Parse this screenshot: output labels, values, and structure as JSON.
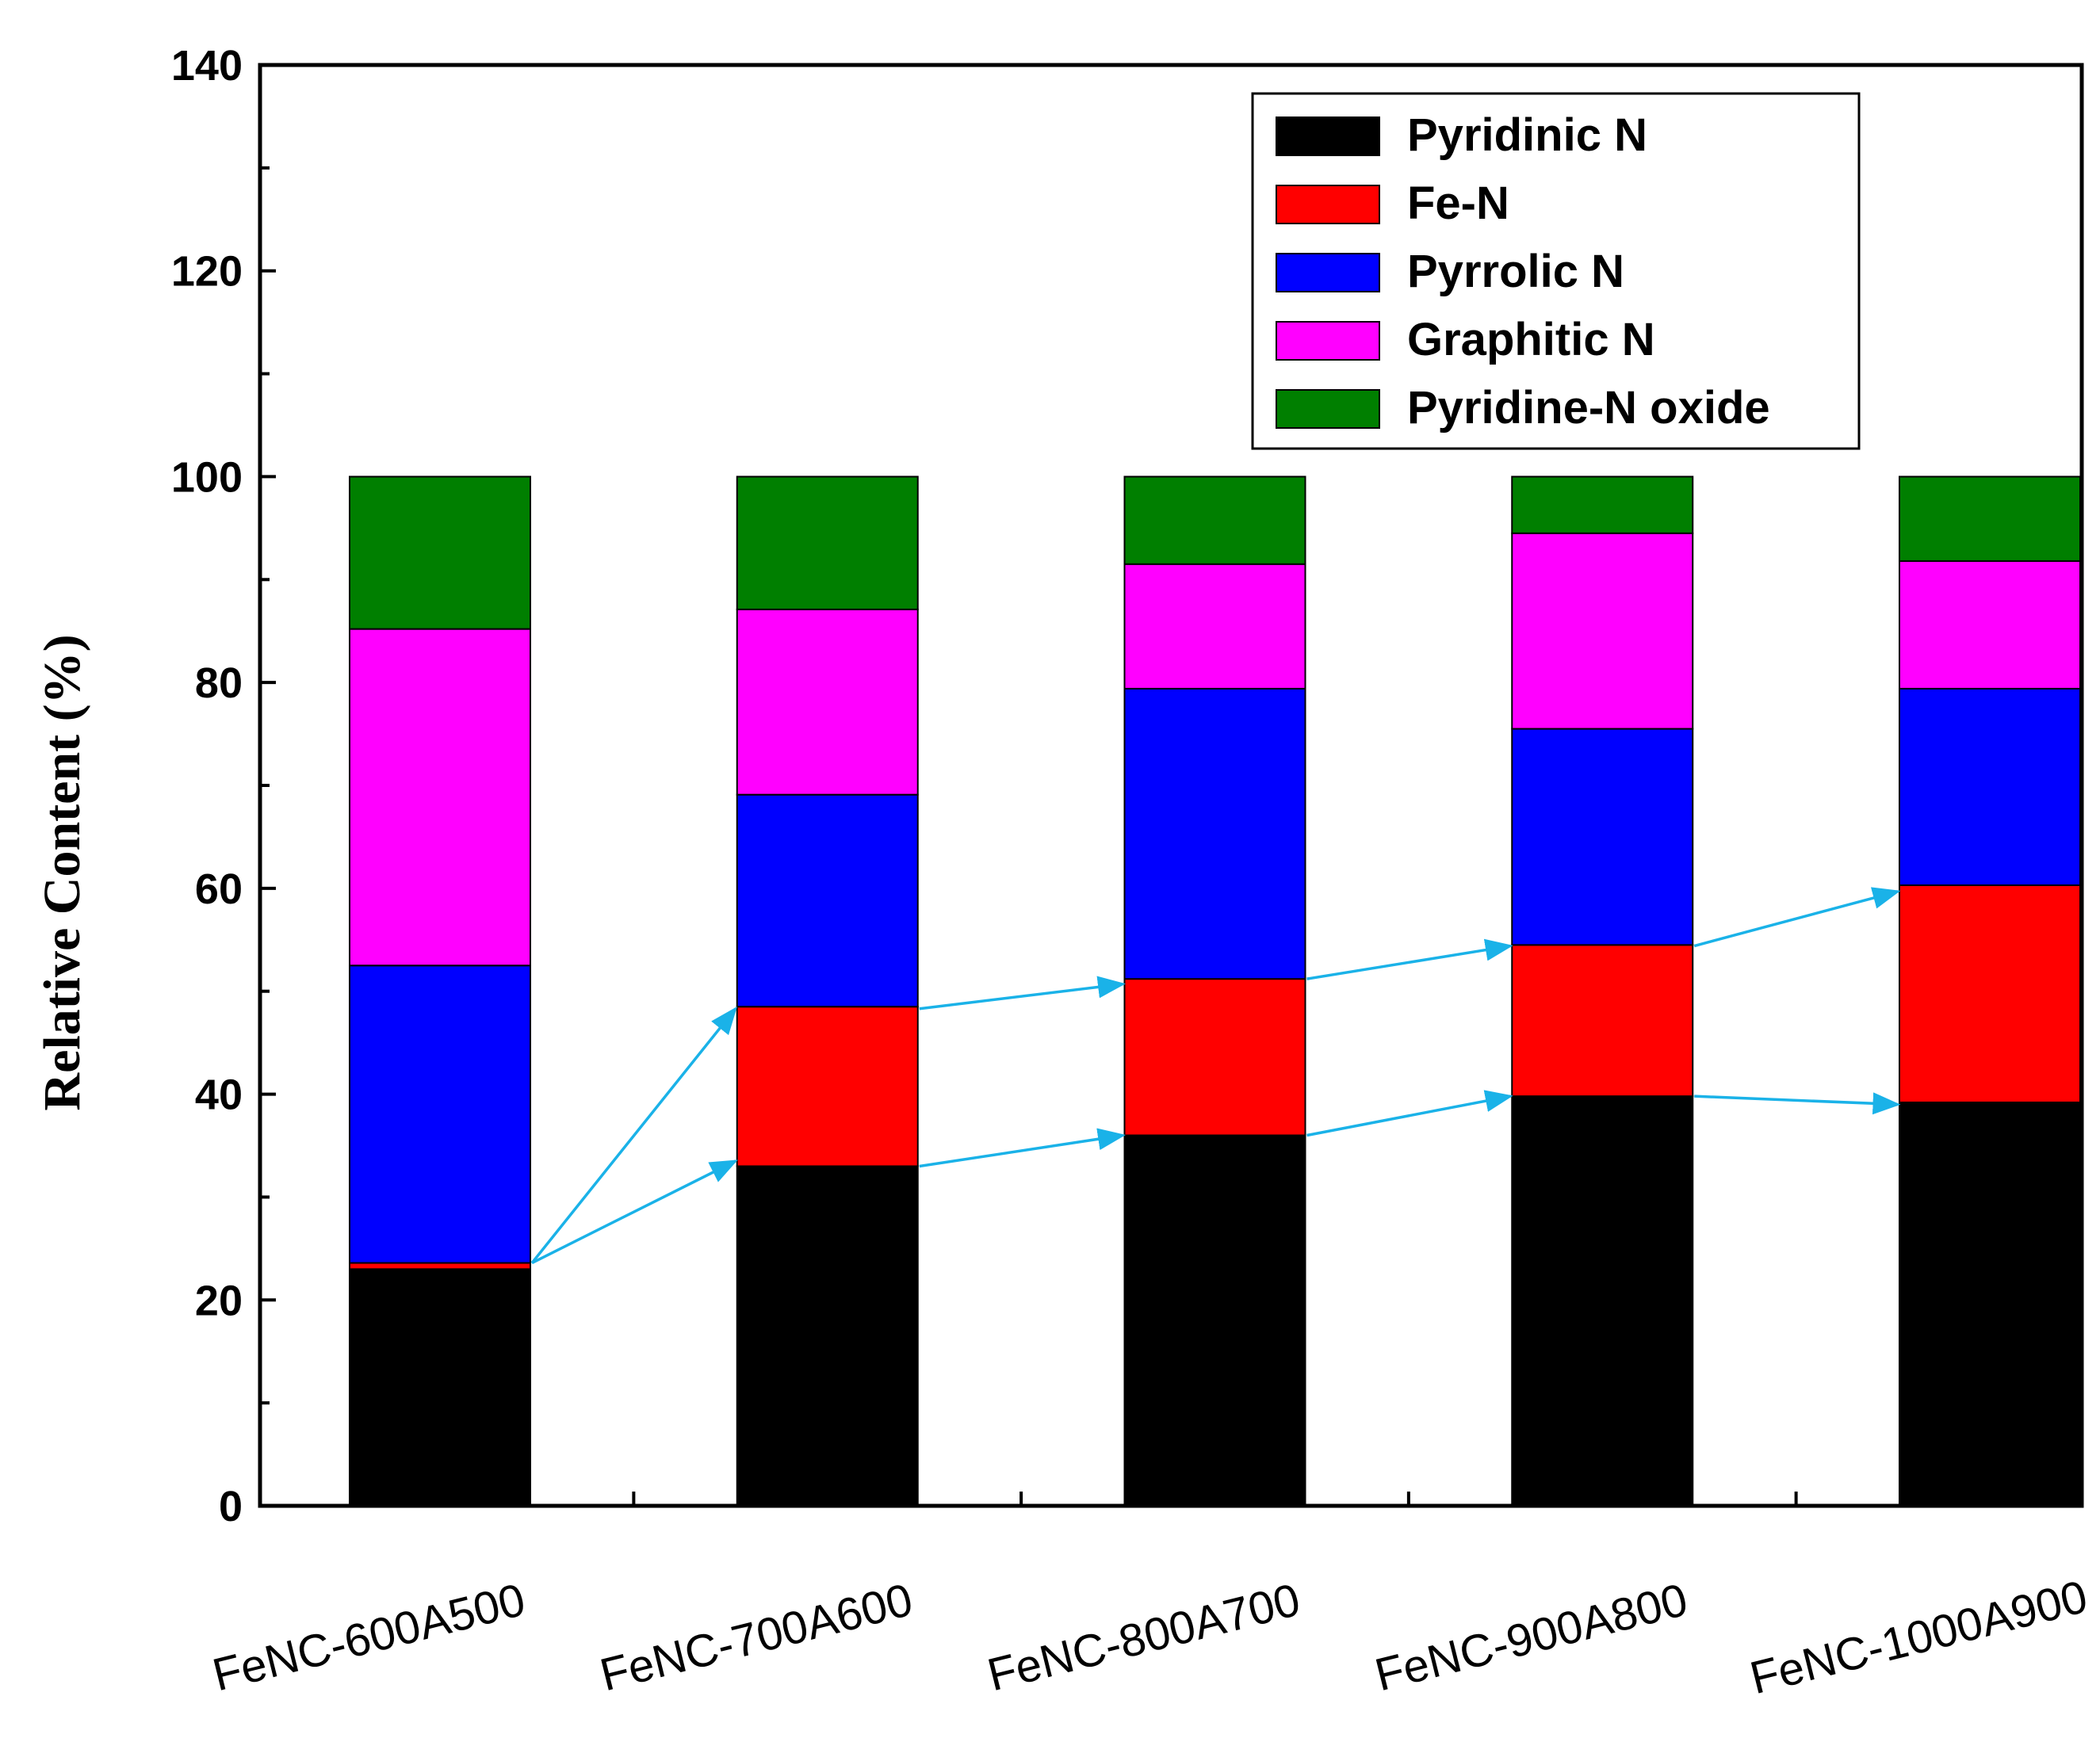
{
  "chart_data": {
    "type": "bar",
    "stacked": true,
    "title": "",
    "xlabel": "",
    "ylabel": "Relative Content (%)",
    "ylim": [
      0,
      140
    ],
    "yticks": [
      0,
      20,
      40,
      60,
      80,
      100,
      120,
      140
    ],
    "grid": false,
    "legend_position": "top-right",
    "categories": [
      "FeNC-600A500",
      "FeNC-700A600",
      "FeNC-800A700",
      "FeNC-900A800",
      "FeNC-1000A900"
    ],
    "series": [
      {
        "name": "Pyridinic N",
        "color": "#000000",
        "values": [
          23.0,
          33.0,
          36.0,
          39.8,
          39.2
        ]
      },
      {
        "name": "Fe-N",
        "color": "#ff0000",
        "values": [
          0.6,
          15.5,
          15.2,
          14.7,
          21.1
        ]
      },
      {
        "name": "Pyrrolic N",
        "color": "#0000ff",
        "values": [
          28.9,
          20.6,
          28.2,
          21.0,
          19.1
        ]
      },
      {
        "name": "Graphitic N",
        "color": "#ff00ff",
        "values": [
          32.7,
          18.0,
          12.1,
          19.0,
          12.4
        ]
      },
      {
        "name": "Pyridine-N oxide",
        "color": "#007f00",
        "values": [
          14.8,
          12.9,
          8.5,
          5.5,
          8.2
        ]
      }
    ],
    "annotations": {
      "arrow_color": "#1ab2e8",
      "description": "arrows connect Fe-N level across samples",
      "arrows": [
        {
          "from": [
            0,
            23.6
          ],
          "to": [
            1,
            33.5
          ]
        },
        {
          "from": [
            0,
            23.6
          ],
          "to": [
            1,
            48.3
          ]
        },
        {
          "from": [
            1,
            48.3
          ],
          "to": [
            2,
            50.7
          ]
        },
        {
          "from": [
            1,
            33.0
          ],
          "to": [
            2,
            36.0
          ]
        },
        {
          "from": [
            2,
            51.2
          ],
          "to": [
            3,
            54.4
          ]
        },
        {
          "from": [
            2,
            36.0
          ],
          "to": [
            3,
            39.8
          ]
        },
        {
          "from": [
            3,
            54.4
          ],
          "to": [
            4,
            59.7
          ]
        },
        {
          "from": [
            3,
            39.8
          ],
          "to": [
            4,
            39.0
          ]
        }
      ]
    }
  }
}
